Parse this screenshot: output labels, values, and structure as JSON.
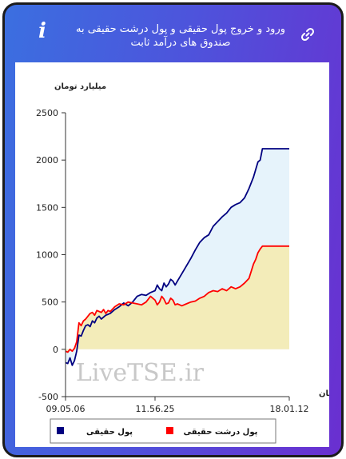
{
  "header": {
    "title": "ورود و خروج پول حقیقی و پول درشت حقیقی به صندوق های درآمد ثابت",
    "info_icon": "i",
    "link_icon": "link-icon"
  },
  "chart_data": {
    "type": "area",
    "ylabel": "میلیارد تومان",
    "xlabel": "زمان",
    "ylim": [
      -500,
      2500
    ],
    "yticks": [
      -500,
      0,
      500,
      1000,
      1500,
      2000,
      2500
    ],
    "xlim": [
      0,
      100
    ],
    "xtick_labels": [
      {
        "x": 0,
        "label": "09.05.06"
      },
      {
        "x": 40,
        "label": "11.56.25"
      },
      {
        "x": 100,
        "label": "18.01.12"
      }
    ],
    "watermark": "LiveTSE.ir",
    "series": [
      {
        "name": "پول حقیقی",
        "color": "#000080",
        "fill": "#e6f3fb",
        "points": [
          [
            0,
            -140
          ],
          [
            1,
            -150
          ],
          [
            2,
            -90
          ],
          [
            3,
            -170
          ],
          [
            4,
            -120
          ],
          [
            5,
            -20
          ],
          [
            6,
            150
          ],
          [
            7,
            140
          ],
          [
            8,
            200
          ],
          [
            9,
            250
          ],
          [
            10,
            260
          ],
          [
            11,
            240
          ],
          [
            12,
            300
          ],
          [
            13,
            280
          ],
          [
            14,
            330
          ],
          [
            15,
            350
          ],
          [
            16,
            320
          ],
          [
            17,
            340
          ],
          [
            18,
            360
          ],
          [
            19,
            370
          ],
          [
            20,
            380
          ],
          [
            22,
            420
          ],
          [
            24,
            450
          ],
          [
            26,
            490
          ],
          [
            28,
            460
          ],
          [
            30,
            500
          ],
          [
            32,
            560
          ],
          [
            34,
            580
          ],
          [
            36,
            570
          ],
          [
            38,
            600
          ],
          [
            40,
            620
          ],
          [
            41,
            680
          ],
          [
            42,
            640
          ],
          [
            43,
            620
          ],
          [
            44,
            700
          ],
          [
            45,
            660
          ],
          [
            46,
            690
          ],
          [
            47,
            740
          ],
          [
            48,
            720
          ],
          [
            49,
            680
          ],
          [
            50,
            720
          ],
          [
            52,
            800
          ],
          [
            54,
            880
          ],
          [
            56,
            960
          ],
          [
            58,
            1050
          ],
          [
            60,
            1130
          ],
          [
            62,
            1180
          ],
          [
            64,
            1210
          ],
          [
            66,
            1300
          ],
          [
            68,
            1350
          ],
          [
            70,
            1400
          ],
          [
            72,
            1440
          ],
          [
            74,
            1500
          ],
          [
            76,
            1530
          ],
          [
            78,
            1550
          ],
          [
            80,
            1600
          ],
          [
            82,
            1700
          ],
          [
            84,
            1820
          ],
          [
            85,
            1900
          ],
          [
            86,
            1980
          ],
          [
            87,
            2000
          ],
          [
            88,
            2120
          ],
          [
            92,
            2120
          ],
          [
            96,
            2120
          ],
          [
            100,
            2120
          ]
        ]
      },
      {
        "name": "پول درشت حقیقی",
        "color": "#ff0000",
        "fill": "#f3ecb9",
        "points": [
          [
            0,
            -20
          ],
          [
            1,
            -30
          ],
          [
            2,
            0
          ],
          [
            3,
            -20
          ],
          [
            4,
            10
          ],
          [
            5,
            80
          ],
          [
            6,
            280
          ],
          [
            7,
            250
          ],
          [
            8,
            300
          ],
          [
            9,
            320
          ],
          [
            10,
            350
          ],
          [
            11,
            380
          ],
          [
            12,
            390
          ],
          [
            13,
            360
          ],
          [
            14,
            410
          ],
          [
            15,
            400
          ],
          [
            16,
            390
          ],
          [
            17,
            420
          ],
          [
            18,
            380
          ],
          [
            19,
            410
          ],
          [
            20,
            400
          ],
          [
            22,
            450
          ],
          [
            24,
            480
          ],
          [
            26,
            470
          ],
          [
            28,
            500
          ],
          [
            30,
            490
          ],
          [
            32,
            480
          ],
          [
            34,
            470
          ],
          [
            36,
            500
          ],
          [
            38,
            560
          ],
          [
            40,
            520
          ],
          [
            41,
            470
          ],
          [
            42,
            500
          ],
          [
            43,
            560
          ],
          [
            44,
            530
          ],
          [
            45,
            480
          ],
          [
            46,
            490
          ],
          [
            47,
            540
          ],
          [
            48,
            520
          ],
          [
            49,
            470
          ],
          [
            50,
            480
          ],
          [
            52,
            460
          ],
          [
            54,
            480
          ],
          [
            56,
            500
          ],
          [
            58,
            510
          ],
          [
            60,
            540
          ],
          [
            62,
            560
          ],
          [
            64,
            600
          ],
          [
            66,
            620
          ],
          [
            68,
            610
          ],
          [
            70,
            640
          ],
          [
            72,
            620
          ],
          [
            74,
            660
          ],
          [
            76,
            640
          ],
          [
            78,
            660
          ],
          [
            80,
            700
          ],
          [
            82,
            750
          ],
          [
            84,
            900
          ],
          [
            85,
            950
          ],
          [
            86,
            1020
          ],
          [
            87,
            1060
          ],
          [
            88,
            1090
          ],
          [
            92,
            1090
          ],
          [
            96,
            1090
          ],
          [
            100,
            1090
          ]
        ]
      }
    ],
    "legend_placement": "bottom",
    "grid": false
  }
}
